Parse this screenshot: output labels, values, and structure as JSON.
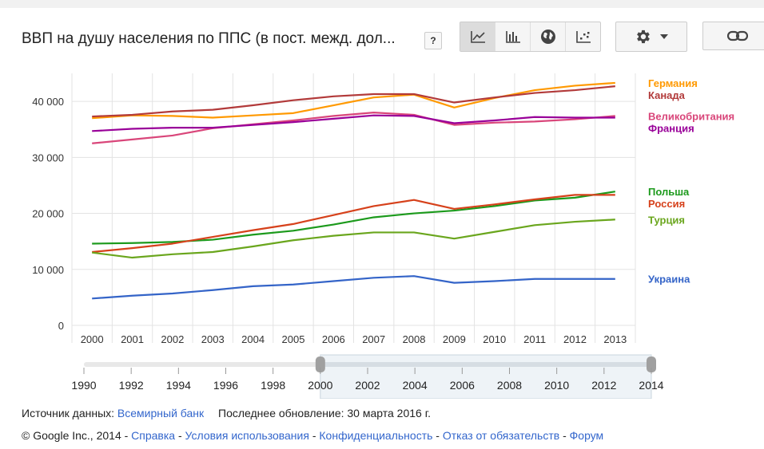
{
  "title": "ВВП на душу населения по ППС (в пост. межд. дол...",
  "help_label": "?",
  "view_buttons": [
    {
      "name": "line-chart-icon",
      "active": true
    },
    {
      "name": "bar-chart-icon",
      "active": false
    },
    {
      "name": "globe-icon",
      "active": false
    },
    {
      "name": "scatter-chart-icon",
      "active": false
    }
  ],
  "colors": {
    "Германия": "#ff9900",
    "Канада": "#b23a3a",
    "Великобритания": "#d9467a",
    "Франция": "#990099",
    "Польша": "#1c9a1c",
    "Россия": "#d6411b",
    "Турция": "#6aa61d",
    "Украина": "#3464c8"
  },
  "chart_data": {
    "type": "line",
    "x": [
      2000,
      2001,
      2002,
      2003,
      2004,
      2005,
      2006,
      2007,
      2008,
      2009,
      2010,
      2011,
      2012,
      2013
    ],
    "xlim": [
      1999.5,
      2013.5
    ],
    "ylim": [
      0,
      45000
    ],
    "yticks": [
      0,
      10000,
      20000,
      30000,
      40000
    ],
    "ytick_labels": [
      "0",
      "10 000",
      "20 000",
      "30 000",
      "40 000"
    ],
    "xtick_labels": [
      "2000",
      "2001",
      "2002",
      "2003",
      "2004",
      "2005",
      "2006",
      "2007",
      "2008",
      "2009",
      "2010",
      "2011",
      "2012",
      "2013"
    ],
    "grid": true,
    "legend_position": "right",
    "series": [
      {
        "name": "Германия",
        "values": [
          37000,
          37500,
          37400,
          37100,
          37500,
          37900,
          39300,
          40700,
          41200,
          38900,
          40600,
          42000,
          42800,
          43300
        ]
      },
      {
        "name": "Канада",
        "values": [
          37300,
          37600,
          38200,
          38500,
          39300,
          40200,
          40900,
          41300,
          41300,
          39800,
          40700,
          41500,
          42000,
          42700
        ]
      },
      {
        "name": "Великобритания",
        "values": [
          32500,
          33200,
          33900,
          35200,
          35900,
          36600,
          37400,
          38000,
          37600,
          35800,
          36200,
          36400,
          36800,
          37400
        ]
      },
      {
        "name": "Франция",
        "values": [
          34700,
          35100,
          35300,
          35300,
          35800,
          36300,
          36900,
          37500,
          37400,
          36100,
          36600,
          37200,
          37100,
          37100
        ]
      },
      {
        "name": "Польша",
        "values": [
          14600,
          14700,
          14900,
          15300,
          16200,
          16900,
          18000,
          19300,
          20000,
          20500,
          21300,
          22300,
          22800,
          23900
        ]
      },
      {
        "name": "Россия",
        "values": [
          13100,
          13800,
          14600,
          15800,
          17000,
          18100,
          19700,
          21300,
          22400,
          20800,
          21600,
          22500,
          23300,
          23300
        ]
      },
      {
        "name": "Турция",
        "values": [
          13000,
          12100,
          12700,
          13100,
          14100,
          15200,
          16000,
          16600,
          16600,
          15500,
          16700,
          17900,
          18500,
          18900
        ]
      },
      {
        "name": "Украина",
        "values": [
          4800,
          5300,
          5700,
          6300,
          7000,
          7300,
          7900,
          8500,
          8800,
          7600,
          7900,
          8300,
          8300,
          8300
        ]
      }
    ],
    "range_slider": {
      "ticks": [
        "1990",
        "1992",
        "1994",
        "1996",
        "1998",
        "2000",
        "2002",
        "2004",
        "2006",
        "2008",
        "2010",
        "2012",
        "2014"
      ],
      "range_start": 2000,
      "range_end": 2014,
      "domain": [
        1990,
        2014
      ]
    }
  },
  "source": {
    "label": "Источник данных:",
    "link": "Всемирный банк",
    "updated": "Последнее обновление: 30 марта 2016 г."
  },
  "footer": {
    "copyright": "© Google Inc., 2014 -",
    "links": [
      "Справка",
      "Условия использования",
      "Конфиденциальность",
      "Отказ от обязательств",
      "Форум"
    ],
    "separator": " - "
  }
}
